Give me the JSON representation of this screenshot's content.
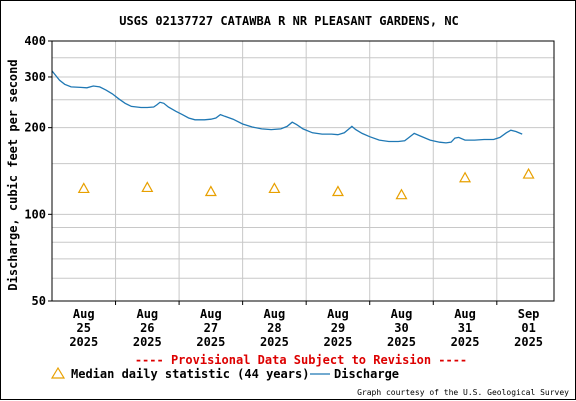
{
  "chart_data": {
    "type": "line",
    "title": "USGS 02137727 CATAWBA R NR PLEASANT GARDENS, NC",
    "ylabel": "Discharge, cubic feet per second",
    "xlabel": "",
    "y_scale": "log",
    "ylim": [
      50,
      400
    ],
    "xlim": [
      0,
      7.9
    ],
    "grid": true,
    "y_ticks": [
      {
        "value": 400,
        "label": "400"
      },
      {
        "value": 300,
        "label": "300"
      },
      {
        "value": 200,
        "label": "200"
      },
      {
        "value": 100,
        "label": "100"
      },
      {
        "value": 50,
        "label": "50"
      }
    ],
    "y_minor_grid": [
      350,
      250,
      150,
      90,
      80,
      70,
      60
    ],
    "x_tick_labels": [
      {
        "pos": 0.5,
        "month": "Aug",
        "day": "25",
        "year": "2025"
      },
      {
        "pos": 1.5,
        "month": "Aug",
        "day": "26",
        "year": "2025"
      },
      {
        "pos": 2.5,
        "month": "Aug",
        "day": "27",
        "year": "2025"
      },
      {
        "pos": 3.5,
        "month": "Aug",
        "day": "28",
        "year": "2025"
      },
      {
        "pos": 4.5,
        "month": "Aug",
        "day": "29",
        "year": "2025"
      },
      {
        "pos": 5.5,
        "month": "Aug",
        "day": "30",
        "year": "2025"
      },
      {
        "pos": 6.5,
        "month": "Aug",
        "day": "31",
        "year": "2025"
      },
      {
        "pos": 7.5,
        "month": "Sep",
        "day": "01",
        "year": "2025"
      }
    ],
    "x_grid": [
      1,
      2,
      3,
      4,
      5,
      6,
      7
    ],
    "series": [
      {
        "name": "Discharge",
        "color": "#1f78b4",
        "points": [
          [
            0.0,
            315
          ],
          [
            0.05,
            305
          ],
          [
            0.12,
            292
          ],
          [
            0.2,
            283
          ],
          [
            0.3,
            277
          ],
          [
            0.45,
            276
          ],
          [
            0.55,
            275
          ],
          [
            0.65,
            279
          ],
          [
            0.75,
            277
          ],
          [
            0.85,
            270
          ],
          [
            0.95,
            262
          ],
          [
            1.05,
            252
          ],
          [
            1.15,
            243
          ],
          [
            1.25,
            237
          ],
          [
            1.4,
            235
          ],
          [
            1.5,
            235
          ],
          [
            1.6,
            236
          ],
          [
            1.65,
            240
          ],
          [
            1.7,
            245
          ],
          [
            1.76,
            243
          ],
          [
            1.83,
            236
          ],
          [
            1.95,
            228
          ],
          [
            2.05,
            222
          ],
          [
            2.15,
            216
          ],
          [
            2.25,
            213
          ],
          [
            2.4,
            213
          ],
          [
            2.5,
            214
          ],
          [
            2.58,
            216
          ],
          [
            2.65,
            222
          ],
          [
            2.72,
            219
          ],
          [
            2.85,
            214
          ],
          [
            3.0,
            206
          ],
          [
            3.15,
            201
          ],
          [
            3.3,
            198
          ],
          [
            3.45,
            197
          ],
          [
            3.6,
            198
          ],
          [
            3.7,
            202
          ],
          [
            3.78,
            209
          ],
          [
            3.85,
            205
          ],
          [
            3.95,
            198
          ],
          [
            4.1,
            192
          ],
          [
            4.25,
            190
          ],
          [
            4.4,
            190
          ],
          [
            4.5,
            189
          ],
          [
            4.6,
            192
          ],
          [
            4.66,
            197
          ],
          [
            4.72,
            202
          ],
          [
            4.78,
            197
          ],
          [
            4.88,
            191
          ],
          [
            5.0,
            186
          ],
          [
            5.15,
            181
          ],
          [
            5.3,
            179
          ],
          [
            5.45,
            179
          ],
          [
            5.55,
            180
          ],
          [
            5.62,
            185
          ],
          [
            5.7,
            191
          ],
          [
            5.8,
            187
          ],
          [
            5.95,
            181
          ],
          [
            6.1,
            178
          ],
          [
            6.2,
            177
          ],
          [
            6.28,
            178
          ],
          [
            6.34,
            184
          ],
          [
            6.4,
            185
          ],
          [
            6.5,
            181
          ],
          [
            6.65,
            181
          ],
          [
            6.8,
            182
          ],
          [
            6.95,
            182
          ],
          [
            7.05,
            185
          ],
          [
            7.15,
            192
          ],
          [
            7.22,
            196
          ],
          [
            7.3,
            194
          ],
          [
            7.4,
            190
          ]
        ]
      },
      {
        "name": "Median daily statistic (44 years)",
        "color": "#e8a000",
        "marker": "triangle",
        "points": [
          [
            0.5,
            123
          ],
          [
            1.5,
            124
          ],
          [
            2.5,
            120
          ],
          [
            3.5,
            123
          ],
          [
            4.5,
            120
          ],
          [
            5.5,
            117
          ],
          [
            6.5,
            134
          ],
          [
            7.5,
            138
          ]
        ]
      }
    ],
    "legend_position": "bottom-left"
  },
  "provisional_note": "---- Provisional Data Subject to Revision ----",
  "legend": {
    "median_label": "Median daily statistic (44 years)",
    "discharge_label": "Discharge"
  },
  "credit": "Graph courtesy of the U.S. Geological Survey",
  "colors": {
    "discharge": "#1f78b4",
    "median": "#e8a000",
    "provisional": "#dd0000",
    "grid": "#c8c8c8"
  }
}
